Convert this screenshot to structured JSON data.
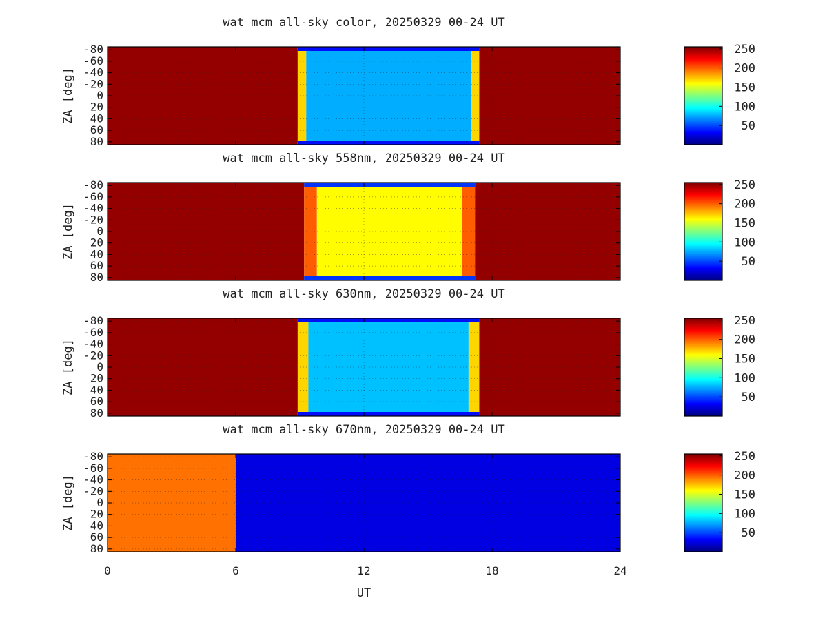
{
  "chart_data": [
    {
      "type": "heatmap",
      "title": "wat mcm all-sky color, 20250329 00-24 UT",
      "xlabel": "UT",
      "ylabel": "ZA [deg]",
      "xlim": [
        0,
        24
      ],
      "ylim": [
        -85,
        85
      ],
      "x_ticks": [
        0,
        6,
        12,
        18,
        24
      ],
      "y_ticks": [
        -80,
        -60,
        -40,
        -20,
        0,
        20,
        40,
        60,
        80
      ],
      "y_tick_labels": [
        "-80",
        "-60",
        "-40",
        "-20",
        "0",
        "20",
        "40",
        "60",
        "80"
      ],
      "grid": true,
      "colorbar": {
        "min": 0,
        "max": 255,
        "ticks": [
          50,
          100,
          150,
          200,
          250
        ],
        "colormap": "jet"
      },
      "regions": [
        {
          "ut_start": 0,
          "ut_end": 8.9,
          "value": 250
        },
        {
          "ut_start": 8.9,
          "ut_end": 9.3,
          "value": 170
        },
        {
          "ut_start": 9.3,
          "ut_end": 17.0,
          "value": 75
        },
        {
          "ut_start": 17.0,
          "ut_end": 17.4,
          "value": 170
        },
        {
          "ut_start": 17.4,
          "ut_end": 24,
          "value": 250
        }
      ],
      "edge_value": 35
    },
    {
      "type": "heatmap",
      "title": "wat mcm all-sky 558nm, 20250329 00-24 UT",
      "xlabel": "UT",
      "ylabel": "ZA [deg]",
      "xlim": [
        0,
        24
      ],
      "ylim": [
        -85,
        85
      ],
      "x_ticks": [
        0,
        6,
        12,
        18,
        24
      ],
      "y_ticks": [
        -80,
        -60,
        -40,
        -20,
        0,
        20,
        40,
        60,
        80
      ],
      "y_tick_labels": [
        "-80",
        "-60",
        "-40",
        "-20",
        "0",
        "20",
        "40",
        "60",
        "80"
      ],
      "grid": true,
      "colorbar": {
        "min": 0,
        "max": 255,
        "ticks": [
          50,
          100,
          150,
          200,
          250
        ],
        "colormap": "jet"
      },
      "regions": [
        {
          "ut_start": 0,
          "ut_end": 9.2,
          "value": 250
        },
        {
          "ut_start": 9.2,
          "ut_end": 9.8,
          "value": 200
        },
        {
          "ut_start": 9.8,
          "ut_end": 16.6,
          "value": 160
        },
        {
          "ut_start": 16.6,
          "ut_end": 17.2,
          "value": 200
        },
        {
          "ut_start": 17.2,
          "ut_end": 24,
          "value": 250
        }
      ],
      "edge_value": 45
    },
    {
      "type": "heatmap",
      "title": "wat mcm all-sky 630nm, 20250329 00-24 UT",
      "xlabel": "UT",
      "ylabel": "ZA [deg]",
      "xlim": [
        0,
        24
      ],
      "ylim": [
        -85,
        85
      ],
      "x_ticks": [
        0,
        6,
        12,
        18,
        24
      ],
      "y_ticks": [
        -80,
        -60,
        -40,
        -20,
        0,
        20,
        40,
        60,
        80
      ],
      "y_tick_labels": [
        "-80",
        "-60",
        "-40",
        "-20",
        "0",
        "20",
        "40",
        "60",
        "80"
      ],
      "grid": true,
      "colorbar": {
        "min": 0,
        "max": 255,
        "ticks": [
          50,
          100,
          150,
          200,
          250
        ],
        "colormap": "jet"
      },
      "regions": [
        {
          "ut_start": 0,
          "ut_end": 8.9,
          "value": 250
        },
        {
          "ut_start": 8.9,
          "ut_end": 9.4,
          "value": 170
        },
        {
          "ut_start": 9.4,
          "ut_end": 16.9,
          "value": 80
        },
        {
          "ut_start": 16.9,
          "ut_end": 17.4,
          "value": 170
        },
        {
          "ut_start": 17.4,
          "ut_end": 24,
          "value": 250
        }
      ],
      "edge_value": 35
    },
    {
      "type": "heatmap",
      "title": "wat mcm all-sky 670nm, 20250329 00-24 UT",
      "xlabel": "UT",
      "ylabel": "ZA [deg]",
      "xlim": [
        0,
        24
      ],
      "ylim": [
        -85,
        85
      ],
      "x_ticks": [
        0,
        6,
        12,
        18,
        24
      ],
      "x_tick_labels": [
        "0",
        "6",
        "12",
        "18",
        "24"
      ],
      "y_ticks": [
        -80,
        -60,
        -40,
        -20,
        0,
        20,
        40,
        60,
        80
      ],
      "y_tick_labels": [
        "-80",
        "-60",
        "-40",
        "-20",
        "0",
        "20",
        "40",
        "60",
        "80"
      ],
      "grid": true,
      "colorbar": {
        "min": 0,
        "max": 255,
        "ticks": [
          50,
          100,
          150,
          200,
          250
        ],
        "colormap": "jet"
      },
      "regions": [
        {
          "ut_start": 0,
          "ut_end": 6,
          "value": 195
        },
        {
          "ut_start": 6,
          "ut_end": 24,
          "value": 25
        }
      ],
      "edge_value": null
    }
  ]
}
